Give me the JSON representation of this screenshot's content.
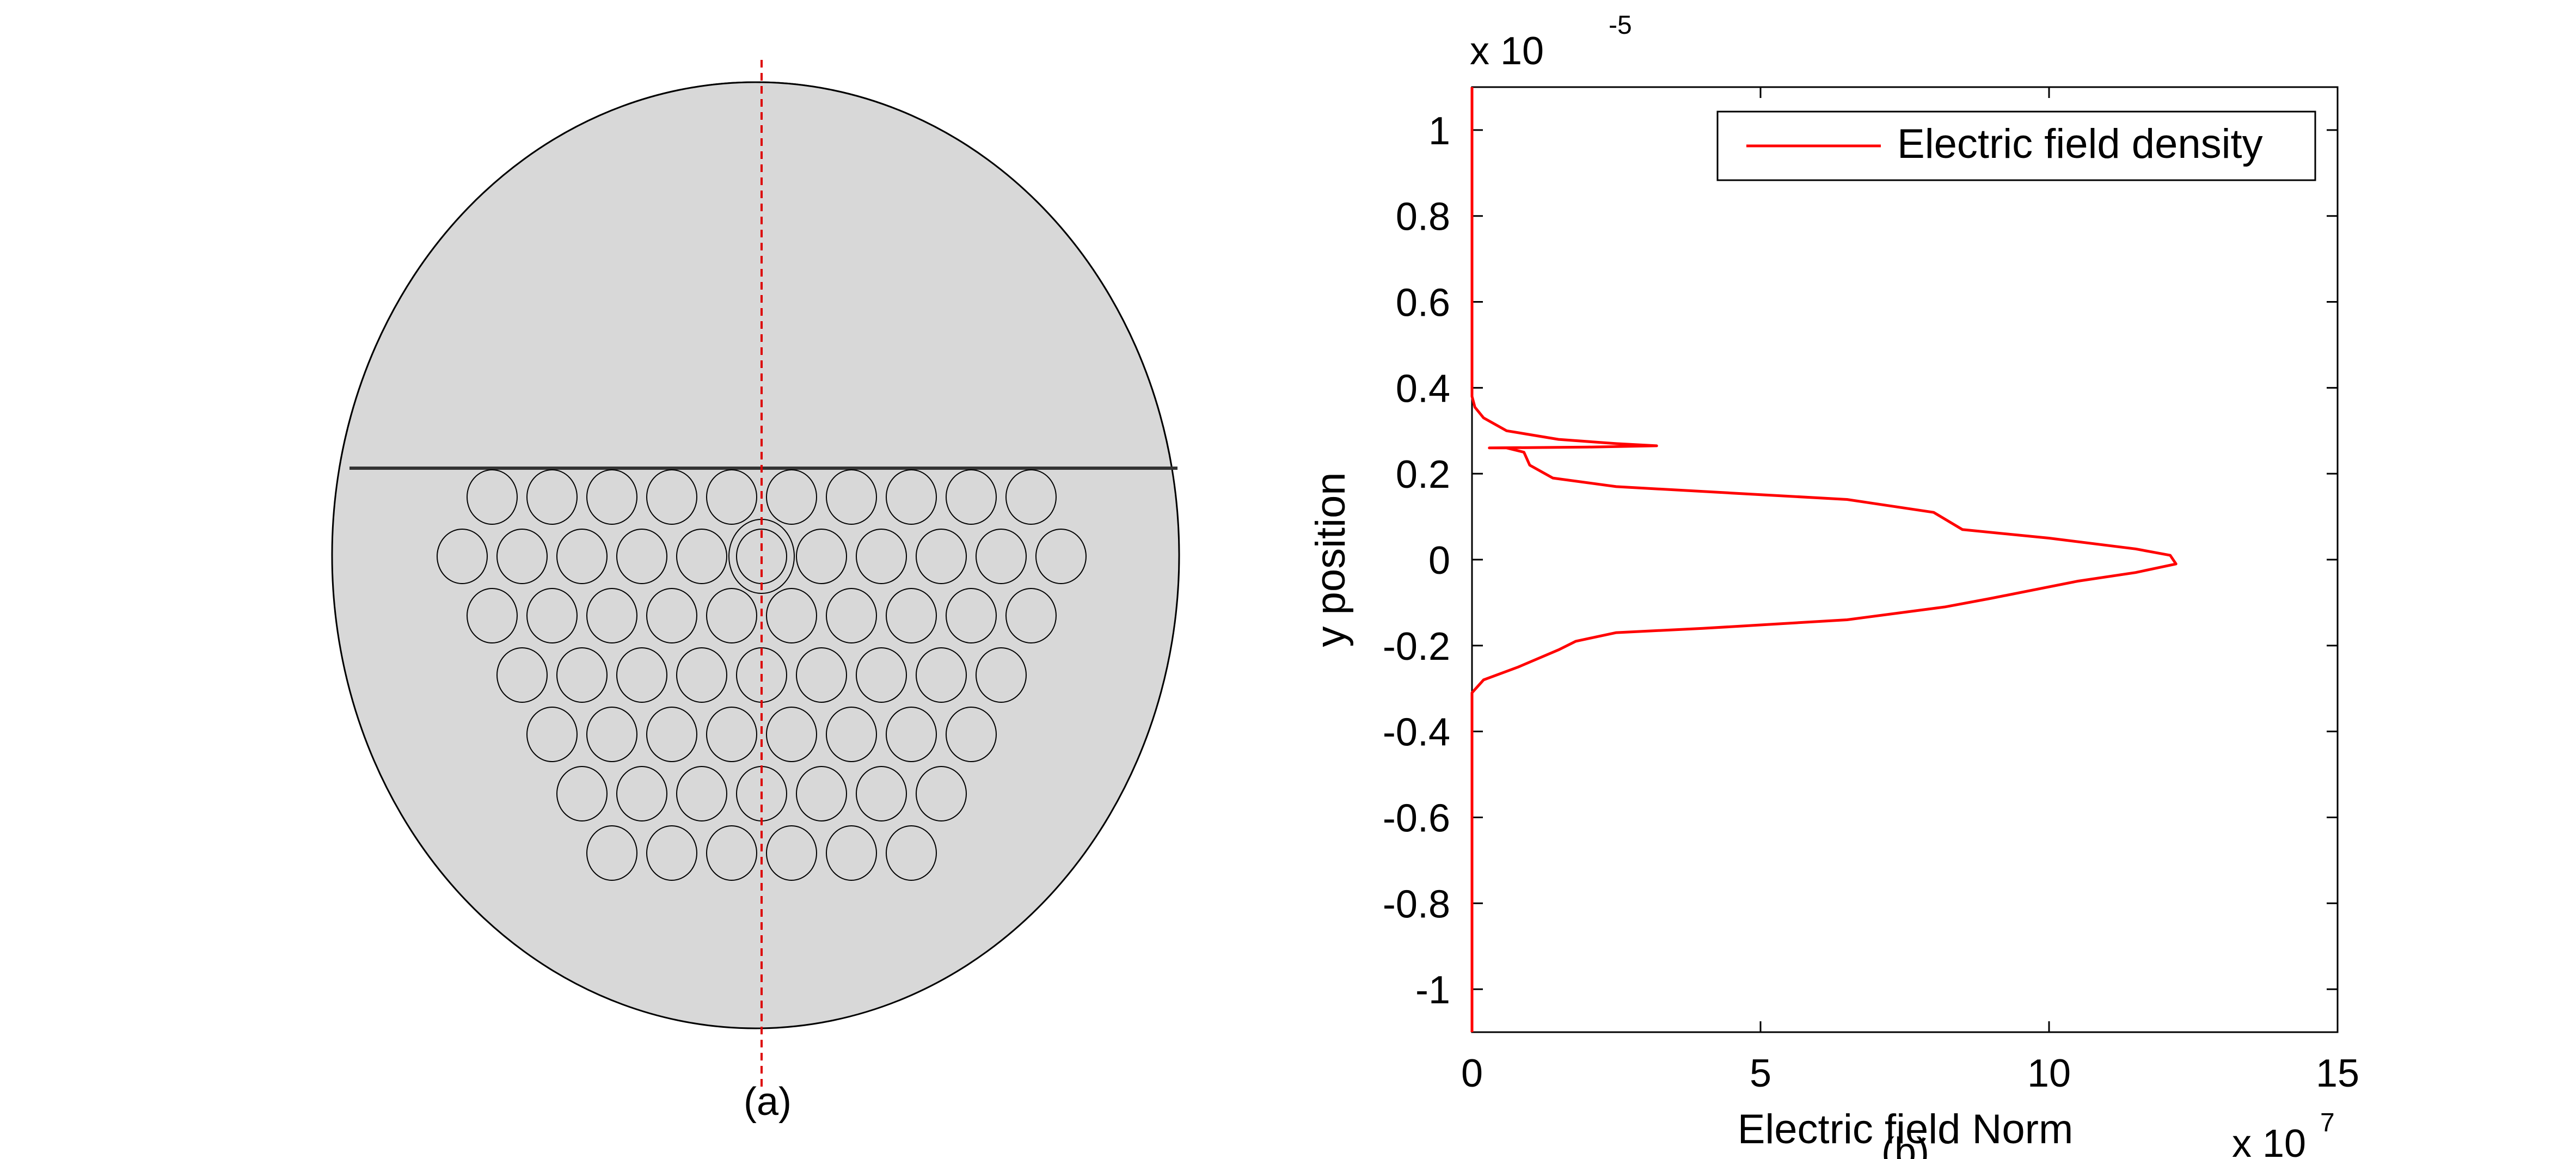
{
  "figure_a": {
    "caption": "(a)",
    "colors": {
      "fill": "#d8d8d8",
      "outline": "#000000",
      "cut_line": "#dd0000"
    },
    "structure": "circular cross-section with upper half solid and a hexagonal array of circular holes in the lower half; vertical dashed red cut line through the center",
    "hole_rows": [
      10,
      11,
      10,
      9,
      8,
      7,
      6
    ]
  },
  "figure_b": {
    "caption": "(b)",
    "chart_data": {
      "type": "line",
      "xlabel": "Electric field Norm",
      "ylabel": "y position",
      "x_multiplier": "x 10",
      "x_multiplier_exp": "7",
      "y_multiplier": "x 10",
      "y_multiplier_exp": "-5",
      "xlim": [
        0,
        15
      ],
      "ylim": [
        -1.1,
        1.1
      ],
      "xticks": [
        0,
        5,
        10,
        15
      ],
      "xtick_labels": [
        "0",
        "5",
        "10",
        "15"
      ],
      "yticks": [
        1,
        0.8,
        0.6,
        0.4,
        0.2,
        0,
        -0.2,
        -0.4,
        -0.6,
        -0.8,
        -1
      ],
      "ytick_labels": [
        "1",
        "0.8",
        "0.6",
        "0.4",
        "0.2",
        "0",
        "-0.2",
        "-0.4",
        "-0.6",
        "-0.8",
        "-1"
      ],
      "grid": false,
      "legend": {
        "position": "top-right",
        "entries": [
          "Electric field density"
        ]
      },
      "series": [
        {
          "name": "Electric field density",
          "color": "#ff0000",
          "points": [
            [
              0,
              1.1
            ],
            [
              0,
              0.38
            ],
            [
              0.05,
              0.355
            ],
            [
              0.2,
              0.33
            ],
            [
              0.6,
              0.3
            ],
            [
              1.5,
              0.28
            ],
            [
              2.5,
              0.27
            ],
            [
              3.2,
              0.265
            ],
            [
              2.0,
              0.262
            ],
            [
              0.3,
              0.26
            ],
            [
              0.6,
              0.26
            ],
            [
              0.9,
              0.25
            ],
            [
              1.0,
              0.22
            ],
            [
              1.4,
              0.19
            ],
            [
              2.5,
              0.17
            ],
            [
              4.5,
              0.155
            ],
            [
              6.5,
              0.14
            ],
            [
              8.0,
              0.11
            ],
            [
              8.5,
              0.07
            ],
            [
              10.0,
              0.05
            ],
            [
              11.5,
              0.025
            ],
            [
              12.1,
              0.01
            ],
            [
              12.2,
              -0.01
            ],
            [
              11.5,
              -0.03
            ],
            [
              10.5,
              -0.05
            ],
            [
              9.0,
              -0.09
            ],
            [
              8.2,
              -0.11
            ],
            [
              6.5,
              -0.14
            ],
            [
              4.0,
              -0.16
            ],
            [
              2.5,
              -0.17
            ],
            [
              1.8,
              -0.19
            ],
            [
              1.5,
              -0.21
            ],
            [
              0.8,
              -0.25
            ],
            [
              0.2,
              -0.28
            ],
            [
              0,
              -0.31
            ],
            [
              0,
              -1.1
            ]
          ]
        }
      ]
    }
  }
}
